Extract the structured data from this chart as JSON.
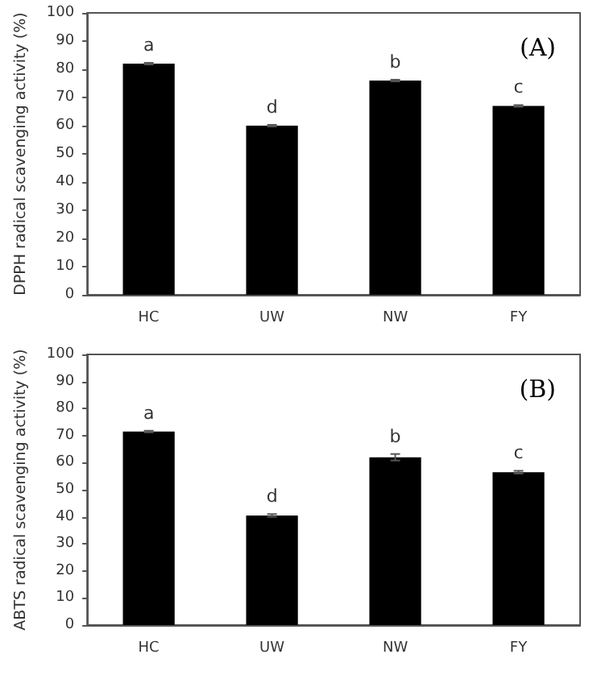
{
  "chart_data": [
    {
      "type": "bar",
      "title": "(A)",
      "ylabel": "DPPH radical scavenging activity (%)",
      "categories": [
        "HC",
        "UW",
        "NW",
        "FY"
      ],
      "values": [
        82,
        60,
        76,
        67
      ],
      "errors": [
        0.3,
        0.3,
        0.3,
        0.3
      ],
      "color": "#000000",
      "ylim": [
        0,
        100
      ],
      "yticks": [
        0,
        10,
        20,
        30,
        40,
        50,
        60,
        70,
        80,
        90,
        100
      ],
      "grid": false,
      "annotations": [
        "a",
        "d",
        "b",
        "c"
      ]
    },
    {
      "type": "bar",
      "title": "(B)",
      "ylabel": "ABTS radical scavenging activity (%)",
      "categories": [
        "HC",
        "UW",
        "NW",
        "FY"
      ],
      "values": [
        71.5,
        40.5,
        62,
        56.5
      ],
      "errors": [
        0.3,
        0.5,
        1.2,
        0.5
      ],
      "color": "#000000",
      "ylim": [
        0,
        100
      ],
      "yticks": [
        0,
        10,
        20,
        30,
        40,
        50,
        60,
        70,
        80,
        90,
        100
      ],
      "grid": false,
      "annotations": [
        "a",
        "d",
        "b",
        "c"
      ]
    }
  ]
}
